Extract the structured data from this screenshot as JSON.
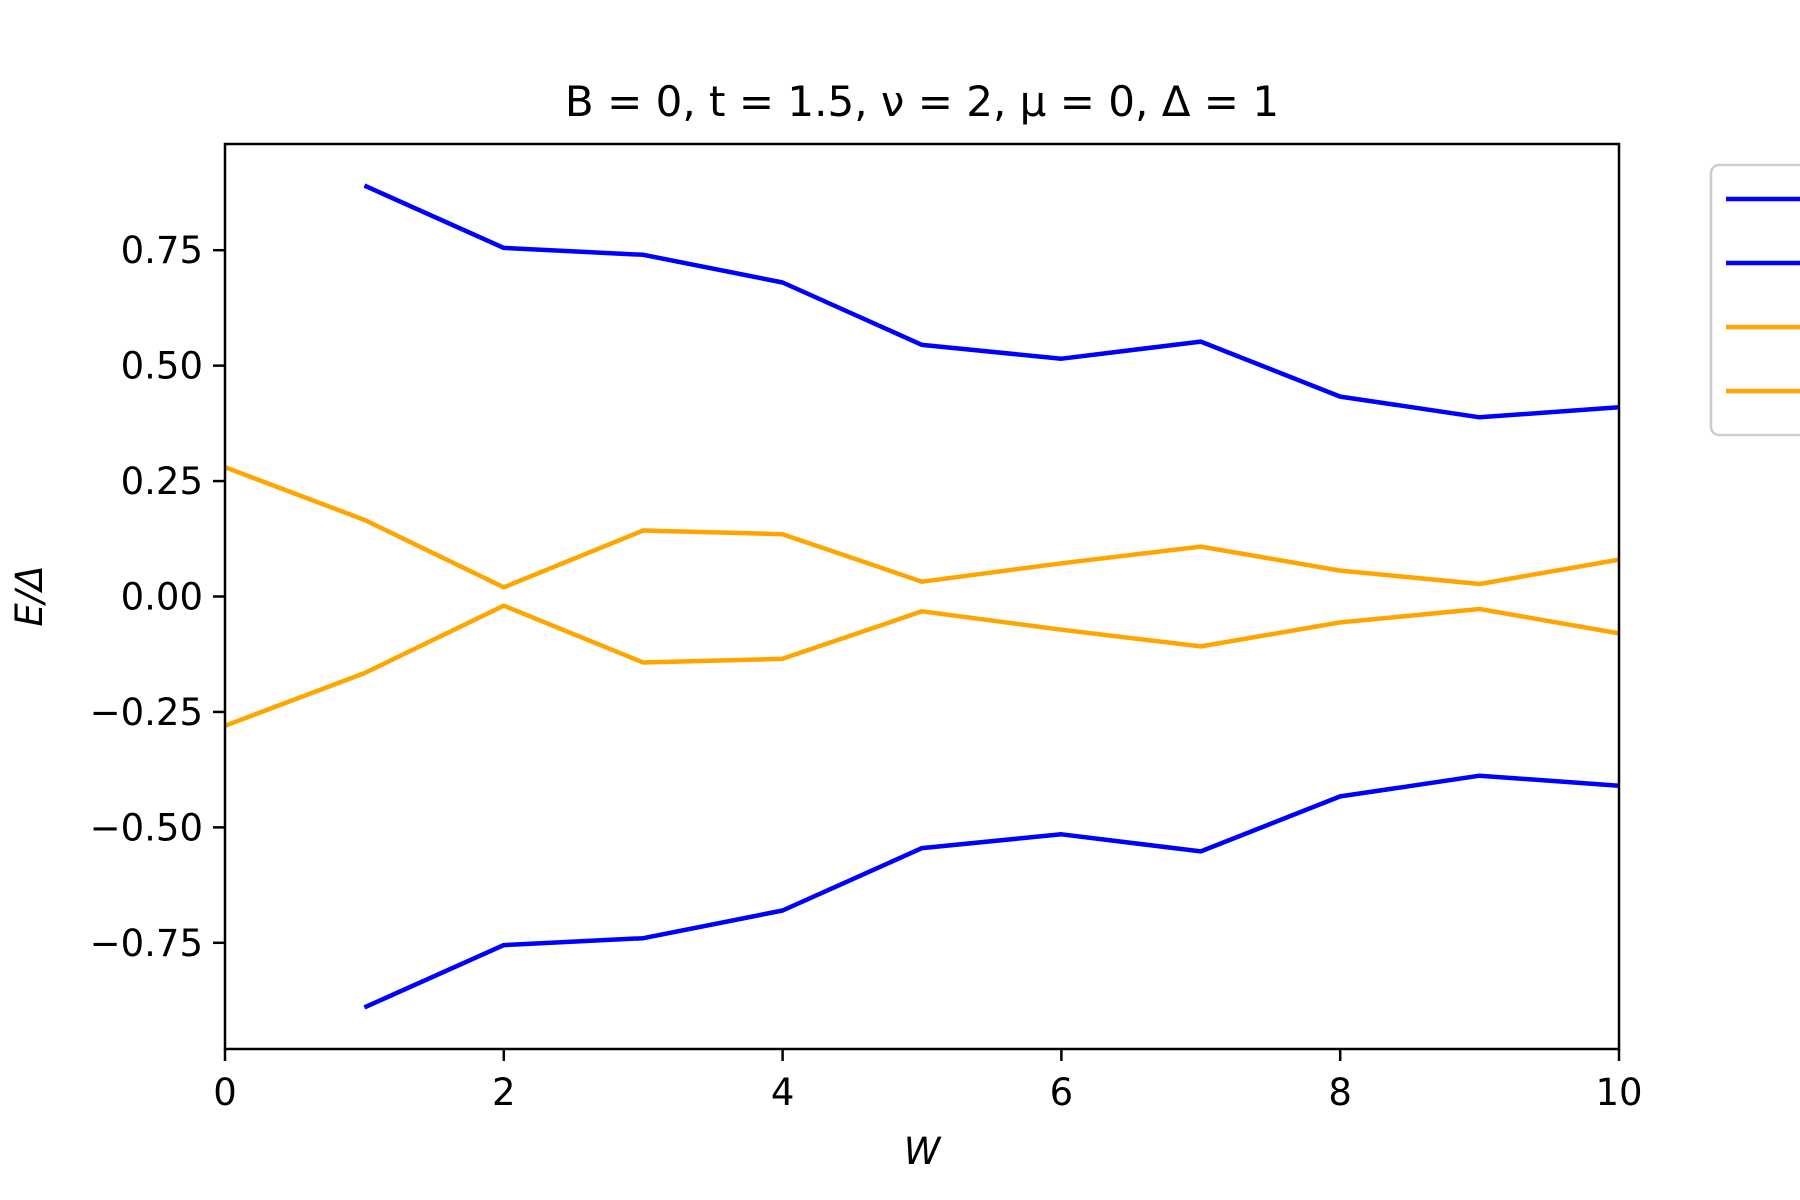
{
  "chart_data": {
    "type": "line",
    "title": "B = 0, t = 1.5, ν = 2, μ = 0, Δ = 1",
    "xlabel": "W",
    "ylabel": "E/Δ",
    "xlim": [
      0,
      10
    ],
    "ylim": [
      -0.98,
      0.98
    ],
    "xticks": [
      0,
      2,
      4,
      6,
      8,
      10
    ],
    "xtick_labels": [
      "0",
      "2",
      "4",
      "6",
      "8",
      "10"
    ],
    "yticks": [
      -0.75,
      -0.5,
      -0.25,
      0.0,
      0.25,
      0.5,
      0.75
    ],
    "ytick_labels": [
      "−0.75",
      "−0.50",
      "−0.25",
      "0.00",
      "0.25",
      "0.50",
      "0.75"
    ],
    "grid": false,
    "legend": {
      "placement": "outside right, top",
      "entries": [
        {
          "color": "#0000ff",
          "text": ""
        },
        {
          "color": "#0000ff",
          "text": ""
        },
        {
          "color": "#ffa500",
          "text": ""
        },
        {
          "color": "#ffa500",
          "text": ""
        }
      ]
    },
    "series": [
      {
        "color": "#0000ff",
        "x": [
          1,
          2,
          3,
          4,
          5,
          6,
          7,
          8,
          9,
          10
        ],
        "y": [
          0.89,
          0.755,
          0.74,
          0.68,
          0.545,
          0.515,
          0.552,
          0.433,
          0.388,
          0.41
        ]
      },
      {
        "color": "#0000ff",
        "x": [
          1,
          2,
          3,
          4,
          5,
          6,
          7,
          8,
          9,
          10
        ],
        "y": [
          -0.89,
          -0.755,
          -0.74,
          -0.68,
          -0.545,
          -0.515,
          -0.552,
          -0.433,
          -0.388,
          -0.41
        ]
      },
      {
        "color": "#ffa500",
        "x": [
          0,
          1,
          2,
          3,
          4,
          5,
          6,
          7,
          8,
          9,
          10
        ],
        "y": [
          0.28,
          0.166,
          0.02,
          0.143,
          0.135,
          0.032,
          0.072,
          0.108,
          0.056,
          0.027,
          0.08
        ]
      },
      {
        "color": "#ffa500",
        "x": [
          0,
          1,
          2,
          3,
          4,
          5,
          6,
          7,
          8,
          9,
          10
        ],
        "y": [
          -0.28,
          -0.166,
          -0.02,
          -0.143,
          -0.135,
          -0.032,
          -0.072,
          -0.108,
          -0.056,
          -0.027,
          -0.08
        ]
      }
    ]
  }
}
